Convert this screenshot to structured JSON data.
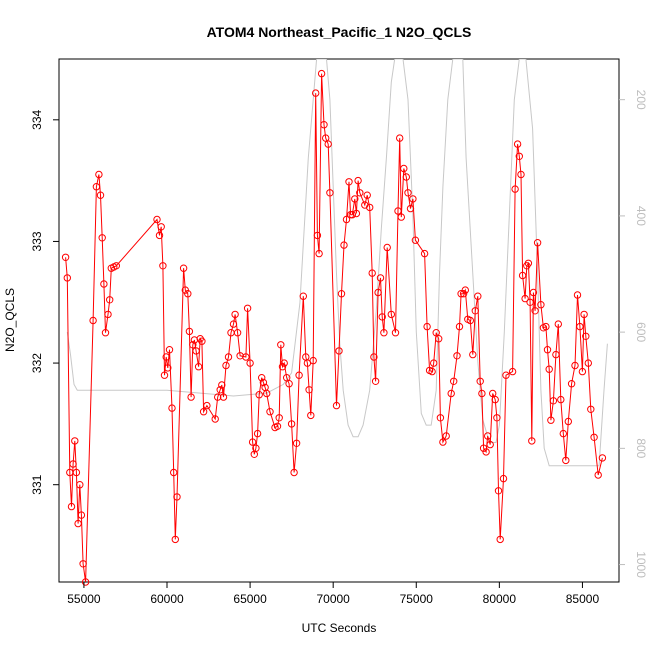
{
  "chart_data": {
    "type": "line",
    "title": "ATOM4 Northeast_Pacific_1 N2O_QCLS",
    "xlabel": "UTC Seconds",
    "ylabel": "N2O_QCLS",
    "xlim": [
      53500,
      87200
    ],
    "ylim": [
      330.2,
      334.5
    ],
    "x_ticks": [
      55000,
      60000,
      65000,
      70000,
      75000,
      80000,
      85000
    ],
    "y_ticks": [
      331,
      332,
      333,
      334
    ],
    "y2_ticks": [
      200,
      400,
      600,
      800,
      1000
    ],
    "y2lim": [
      1030,
      130
    ],
    "colors": {
      "n2o": "#ff0000",
      "pressure": "#c8c8c8"
    },
    "series": [
      {
        "marker": "open-circle",
        "x": [
          53900,
          54000,
          54150,
          54250,
          54350,
          54450,
          54550,
          54650,
          54750,
          54850,
          54950,
          55100,
          55550,
          55750,
          55900,
          56000,
          56100,
          56200,
          56300,
          56450,
          56550,
          56650,
          56800,
          56950,
          59400,
          59550,
          59650,
          59750,
          59850,
          59950,
          60050,
          60150,
          60300,
          60400,
          60500,
          60600,
          61000,
          61100,
          61250,
          61350,
          61450,
          61550,
          61650,
          61750,
          61900,
          62000,
          62100,
          62200,
          62400,
          62900,
          63050,
          63200,
          63300,
          63400,
          63550,
          63700,
          63850,
          64000,
          64100,
          64250,
          64400,
          64750,
          64850,
          65000,
          65150,
          65250,
          65350,
          65450,
          65550,
          65700,
          65800,
          65900,
          66000,
          66200,
          66500,
          66650,
          66750,
          66850,
          66950,
          67050,
          67200,
          67350,
          67500,
          67650,
          67800,
          67950,
          68200,
          68350,
          68450,
          68550,
          68650,
          68800,
          68950,
          69050,
          69150,
          69300,
          69450,
          69550,
          69700,
          69800,
          70200,
          70350,
          70500,
          70650,
          70800,
          70950,
          71050,
          71150,
          71300,
          71400,
          71500,
          71600,
          71900,
          72050,
          72200,
          72350,
          72450,
          72550,
          72700,
          72850,
          72950,
          73050,
          73250,
          73500,
          73750,
          73900,
          74000,
          74100,
          74250,
          74400,
          74500,
          74650,
          74800,
          74950,
          75500,
          75650,
          75800,
          75950,
          76050,
          76200,
          76350,
          76450,
          76600,
          76800,
          77100,
          77250,
          77450,
          77600,
          77700,
          77850,
          77950,
          78100,
          78250,
          78400,
          78550,
          78700,
          78850,
          78950,
          79050,
          79200,
          79300,
          79450,
          79600,
          79750,
          79850,
          79950,
          80050,
          80250,
          80400,
          80800,
          80950,
          81100,
          81200,
          81300,
          81400,
          81550,
          81650,
          81750,
          81850,
          81950,
          82050,
          82150,
          82300,
          82500,
          82650,
          82800,
          82900,
          83000,
          83100,
          83250,
          83400,
          83550,
          83700,
          83850,
          84000,
          84150,
          84350,
          84550,
          84700,
          84850,
          85000,
          85100,
          85200,
          85350,
          85500,
          85700,
          85950,
          86200
        ]
      },
      {
        "marker": "none",
        "x": [
          54000,
          54200,
          54400,
          54600,
          55000,
          57000,
          60000,
          62000,
          64000,
          66000,
          67000,
          67500,
          68000,
          68500,
          68800,
          69000,
          69200,
          69400,
          69600,
          69800,
          70000,
          70200,
          70400,
          70600,
          70900,
          71200,
          71500,
          71800,
          72200,
          72600,
          72900,
          73200,
          73500,
          73700,
          73900,
          74000,
          74200,
          74500,
          74800,
          75000,
          75300,
          75600,
          75900,
          76200,
          76400,
          76600,
          76900,
          77200,
          77500,
          77800,
          78000,
          78400,
          78700,
          79000,
          79300,
          79500,
          79800,
          80000,
          80300,
          80600,
          80900,
          81200,
          81600,
          82000,
          82300,
          82500,
          82700,
          83000,
          83300,
          83600,
          84000,
          84500,
          85000,
          85500,
          86000,
          86300,
          86500
        ]
      }
    ]
  }
}
